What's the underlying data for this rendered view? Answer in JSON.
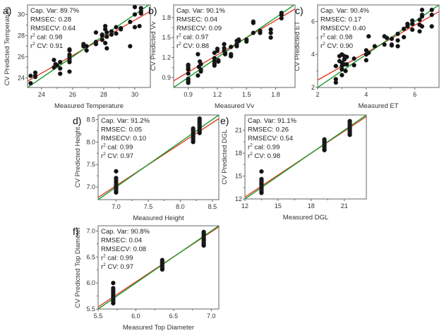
{
  "chart_data": [
    {
      "id": "a",
      "type": "scatter",
      "letter": "a)",
      "xlabel": "Measured Temperature",
      "ylabel": "CV Predicted Temperature",
      "xlim": [
        23.1,
        31.0
      ],
      "ylim": [
        23.1,
        30.9
      ],
      "xticks": [
        24,
        26,
        28,
        30
      ],
      "yticks": [
        24,
        26,
        28,
        30
      ],
      "stats": {
        "cap_var": "Cap. Var: 89.7%",
        "rmsec": "RMSEC: 0.28",
        "rmsecv": "RMSECV: 0.64",
        "r2cal": "cal: 0.98",
        "r2cv": "CV: 0.91"
      },
      "lines": {
        "target": [
          [
            23.1,
            23.1
          ],
          [
            31.0,
            31.0
          ]
        ],
        "fit": [
          [
            23.1,
            23.7
          ],
          [
            31.0,
            30.3
          ]
        ]
      },
      "points": [
        [
          23.3,
          23.5
        ],
        [
          23.3,
          24.2
        ],
        [
          23.6,
          24.1
        ],
        [
          23.6,
          24.5
        ],
        [
          23.6,
          24.2
        ],
        [
          24.8,
          25.7
        ],
        [
          24.8,
          25.0
        ],
        [
          24.9,
          25.2
        ],
        [
          24.9,
          25.3
        ],
        [
          25.0,
          25.2
        ],
        [
          25.2,
          25.5
        ],
        [
          25.2,
          24.9
        ],
        [
          25.2,
          24.4
        ],
        [
          25.8,
          26.7
        ],
        [
          25.8,
          26.6
        ],
        [
          25.8,
          26.2
        ],
        [
          25.8,
          26.0
        ],
        [
          25.8,
          25.8
        ],
        [
          25.8,
          25.6
        ],
        [
          25.8,
          25.5
        ],
        [
          25.8,
          24.6
        ],
        [
          26.7,
          27.2
        ],
        [
          26.7,
          27.0
        ],
        [
          26.9,
          27.0
        ],
        [
          26.9,
          26.6
        ],
        [
          27.5,
          28.3
        ],
        [
          27.5,
          27.4
        ],
        [
          27.5,
          27.2
        ],
        [
          27.9,
          28.1
        ],
        [
          27.9,
          28.0
        ],
        [
          27.9,
          27.6
        ],
        [
          28.1,
          28.9
        ],
        [
          28.1,
          28.6
        ],
        [
          28.1,
          27.3
        ],
        [
          28.2,
          28.3
        ],
        [
          28.2,
          27.9
        ],
        [
          28.2,
          26.8
        ],
        [
          28.5,
          28.4
        ],
        [
          28.5,
          28.1
        ],
        [
          28.8,
          28.8
        ],
        [
          28.8,
          28.2
        ],
        [
          29.1,
          28.6
        ],
        [
          29.1,
          28.7
        ],
        [
          29.7,
          29.3
        ],
        [
          29.7,
          27.0
        ],
        [
          30.0,
          30.7
        ],
        [
          30.0,
          30.0
        ],
        [
          30.0,
          28.8
        ],
        [
          30.3,
          28.9
        ],
        [
          30.4,
          30.6
        ],
        [
          30.4,
          30.3
        ],
        [
          30.4,
          30.1
        ]
      ]
    },
    {
      "id": "b",
      "type": "scatter",
      "letter": "b)",
      "xlabel": "Measured Vv",
      "ylabel": "CV Predicted Vv",
      "xlim": [
        0.75,
        2.0
      ],
      "ylim": [
        0.75,
        1.99
      ],
      "xticks": [
        0.9,
        1.2,
        1.5,
        1.8
      ],
      "yticks": [
        0.9,
        1.2,
        1.5,
        1.8
      ],
      "stats": {
        "cap_var": "Cap. Var: 90.1%",
        "rmsec": "RMSEC: 0.04",
        "rmsecv": "RMSECV: 0.09",
        "r2cal": "cal: 0.97",
        "r2cv": "CV: 0.88"
      },
      "lines": {
        "target": [
          [
            0.75,
            0.75
          ],
          [
            2.0,
            2.0
          ]
        ],
        "fit": [
          [
            0.75,
            0.85
          ],
          [
            2.0,
            1.93
          ]
        ]
      },
      "points": [
        [
          0.9,
          1.09
        ],
        [
          0.9,
          1.07
        ],
        [
          0.9,
          1.04
        ],
        [
          0.9,
          1.02
        ],
        [
          0.9,
          0.96
        ],
        [
          0.9,
          0.88
        ],
        [
          0.9,
          0.86
        ],
        [
          0.9,
          0.84
        ],
        [
          0.9,
          0.82
        ],
        [
          1.0,
          1.25
        ],
        [
          1.0,
          0.93
        ],
        [
          1.01,
          1.06
        ],
        [
          1.02,
          1.14
        ],
        [
          1.03,
          1.1
        ],
        [
          1.03,
          1.02
        ],
        [
          1.03,
          0.99
        ],
        [
          1.17,
          1.27
        ],
        [
          1.17,
          1.19
        ],
        [
          1.17,
          1.15
        ],
        [
          1.17,
          1.11
        ],
        [
          1.17,
          1.08
        ],
        [
          1.2,
          1.33
        ],
        [
          1.2,
          1.3
        ],
        [
          1.21,
          1.16
        ],
        [
          1.21,
          1.14
        ],
        [
          1.27,
          1.4
        ],
        [
          1.27,
          1.34
        ],
        [
          1.27,
          1.3
        ],
        [
          1.28,
          1.27
        ],
        [
          1.28,
          1.25
        ],
        [
          1.34,
          1.36
        ],
        [
          1.34,
          1.25
        ],
        [
          1.34,
          1.22
        ],
        [
          1.4,
          1.45
        ],
        [
          1.4,
          1.4
        ],
        [
          1.4,
          1.37
        ],
        [
          1.42,
          1.47
        ],
        [
          1.42,
          1.45
        ],
        [
          1.5,
          1.47
        ],
        [
          1.5,
          1.44
        ],
        [
          1.57,
          1.74
        ],
        [
          1.57,
          1.72
        ],
        [
          1.57,
          1.57
        ],
        [
          1.64,
          1.6
        ],
        [
          1.64,
          1.57
        ],
        [
          1.75,
          1.62
        ],
        [
          1.75,
          1.57
        ],
        [
          1.75,
          1.5
        ],
        [
          1.86,
          1.87
        ],
        [
          1.86,
          1.84
        ],
        [
          1.86,
          1.79
        ]
      ]
    },
    {
      "id": "c",
      "type": "scatter",
      "letter": "c)",
      "xlabel": "Measured ET",
      "ylabel": "CV Predicted ET",
      "xlim": [
        2,
        7
      ],
      "ylim": [
        2,
        7
      ],
      "xticks": [
        2,
        4,
        6
      ],
      "yticks": [
        2,
        4,
        6
      ],
      "stats": {
        "cap_var": "Cap. Var: 90.4%",
        "rmsec": "RMSEC: 0.17",
        "rmsecv": "RMSECV: 0.40",
        "r2cal": "cal: 0.98",
        "r2cv": "CV: 0.90"
      },
      "lines": {
        "target": [
          [
            2,
            2
          ],
          [
            7,
            7
          ]
        ],
        "fit": [
          [
            2,
            2.45
          ],
          [
            7,
            6.6
          ]
        ]
      },
      "points": [
        [
          2.75,
          3.3
        ],
        [
          2.75,
          2.5
        ],
        [
          2.75,
          2.3
        ],
        [
          2.9,
          3.9
        ],
        [
          2.9,
          3.6
        ],
        [
          3.0,
          4.0
        ],
        [
          3.0,
          3.5
        ],
        [
          3.0,
          3.3
        ],
        [
          3.0,
          3.1
        ],
        [
          3.0,
          2.75
        ],
        [
          3.1,
          3.9
        ],
        [
          3.1,
          3.7
        ],
        [
          3.1,
          3.4
        ],
        [
          3.15,
          3.0
        ],
        [
          3.2,
          3.85
        ],
        [
          3.2,
          3.4
        ],
        [
          3.5,
          3.75
        ],
        [
          3.5,
          3.35
        ],
        [
          4.0,
          4.25
        ],
        [
          4.0,
          4.0
        ],
        [
          4.0,
          3.65
        ],
        [
          4.1,
          5.1
        ],
        [
          4.1,
          4.1
        ],
        [
          4.35,
          4.5
        ],
        [
          4.75,
          5.1
        ],
        [
          4.75,
          4.6
        ],
        [
          4.85,
          5.0
        ],
        [
          5.05,
          4.6
        ],
        [
          5.05,
          4.55
        ],
        [
          5.05,
          4.95
        ],
        [
          5.3,
          5.25
        ],
        [
          5.3,
          4.85
        ],
        [
          5.3,
          4.5
        ],
        [
          5.55,
          5.55
        ],
        [
          5.55,
          5.05
        ],
        [
          5.7,
          5.85
        ],
        [
          5.7,
          5.7
        ],
        [
          5.9,
          6.05
        ],
        [
          5.9,
          5.85
        ],
        [
          5.9,
          5.5
        ],
        [
          6.2,
          6.1
        ],
        [
          6.2,
          5.8
        ],
        [
          6.2,
          5.4
        ],
        [
          6.3,
          6.7
        ],
        [
          6.3,
          6.4
        ],
        [
          6.3,
          6.3
        ],
        [
          6.3,
          5.7
        ],
        [
          6.7,
          6.7
        ],
        [
          6.7,
          6.4
        ],
        [
          6.7,
          5.7
        ]
      ]
    },
    {
      "id": "d",
      "type": "scatter",
      "letter": "d)",
      "xlabel": "Measured Height",
      "ylabel": "CV Predicted Height",
      "xlim": [
        6.72,
        8.6
      ],
      "ylim": [
        6.72,
        8.6
      ],
      "xticks": [
        7.0,
        7.5,
        8.0,
        8.5
      ],
      "yticks": [
        7.0,
        7.5,
        8.0,
        8.5
      ],
      "stats": {
        "cap_var": "Cap. Var: 91.2%",
        "rmsec": "RMSEC: 0.05",
        "rmsecv": "RMSECV: 0.10",
        "r2cal": "cal: 0.99",
        "r2cv": "CV: 0.97"
      },
      "lines": {
        "target": [
          [
            6.72,
            6.72
          ],
          [
            8.6,
            8.6
          ]
        ],
        "fit": [
          [
            6.72,
            6.77
          ],
          [
            8.6,
            8.52
          ]
        ]
      },
      "points": [
        [
          7.0,
          7.35
        ],
        [
          7.0,
          7.2
        ],
        [
          7.0,
          7.15
        ],
        [
          7.0,
          7.1
        ],
        [
          7.0,
          7.05
        ],
        [
          7.0,
          7.02
        ],
        [
          7.0,
          7.0
        ],
        [
          7.0,
          6.97
        ],
        [
          7.0,
          6.94
        ],
        [
          7.0,
          6.91
        ],
        [
          7.0,
          6.88
        ],
        [
          8.2,
          8.3
        ],
        [
          8.2,
          8.27
        ],
        [
          8.2,
          8.23
        ],
        [
          8.2,
          8.2
        ],
        [
          8.2,
          8.16
        ],
        [
          8.2,
          8.12
        ],
        [
          8.2,
          8.08
        ],
        [
          8.2,
          8.04
        ],
        [
          8.2,
          8.0
        ],
        [
          8.3,
          8.52
        ],
        [
          8.3,
          8.48
        ],
        [
          8.3,
          8.44
        ],
        [
          8.3,
          8.4
        ],
        [
          8.3,
          8.36
        ],
        [
          8.3,
          8.32
        ],
        [
          8.3,
          8.28
        ],
        [
          8.3,
          8.24
        ],
        [
          8.3,
          8.2
        ]
      ]
    },
    {
      "id": "e",
      "type": "scatter",
      "letter": "e)",
      "xlabel": "Measured DGL",
      "ylabel": "CV Predicted DGL",
      "xlim": [
        12,
        23.0
      ],
      "ylim": [
        12,
        23.0
      ],
      "xticks": [
        12,
        15,
        18,
        21
      ],
      "yticks": [
        12,
        15,
        18,
        21
      ],
      "stats": {
        "cap_var": "Cap. Var: 91.1%",
        "rmsec": "RMSEC: 0.26",
        "rmsecv": "RMSECV: 0.54",
        "r2cal": "cal: 0.99",
        "r2cv": "CV: 0.98"
      },
      "lines": {
        "target": [
          [
            12,
            12
          ],
          [
            23,
            23
          ]
        ],
        "fit": [
          [
            12,
            12.25
          ],
          [
            23,
            22.8
          ]
        ]
      },
      "points": [
        [
          13.5,
          15.6
        ],
        [
          13.5,
          14.6
        ],
        [
          13.5,
          14.4
        ],
        [
          13.5,
          14.2
        ],
        [
          13.5,
          14.0
        ],
        [
          13.5,
          13.8
        ],
        [
          13.5,
          13.6
        ],
        [
          13.5,
          13.4
        ],
        [
          13.5,
          13.2
        ],
        [
          13.5,
          13.0
        ],
        [
          13.5,
          12.8
        ],
        [
          19.2,
          19.8
        ],
        [
          19.2,
          19.6
        ],
        [
          19.2,
          19.4
        ],
        [
          19.2,
          19.2
        ],
        [
          19.2,
          19.0
        ],
        [
          19.2,
          18.8
        ],
        [
          19.2,
          18.6
        ],
        [
          19.2,
          18.4
        ],
        [
          21.5,
          22.2
        ],
        [
          21.5,
          22.0
        ],
        [
          21.5,
          21.8
        ],
        [
          21.5,
          21.6
        ],
        [
          21.5,
          21.4
        ],
        [
          21.5,
          21.2
        ],
        [
          21.5,
          21.0
        ],
        [
          21.5,
          20.8
        ],
        [
          21.5,
          20.6
        ],
        [
          21.5,
          20.4
        ]
      ]
    },
    {
      "id": "f",
      "type": "scatter",
      "letter": "f)",
      "xlabel": "Measured Top Diameter",
      "ylabel": "CV Predicted Top Diameter",
      "xlim": [
        5.5,
        7.1
      ],
      "ylim": [
        5.5,
        7.1
      ],
      "xticks": [
        5.5,
        6.0,
        6.5,
        7.0
      ],
      "yticks": [
        5.5,
        6.0,
        6.5,
        7.0
      ],
      "stats": {
        "cap_var": "Cap. Var: 90.8%",
        "rmsec": "RMSEC: 0.04",
        "rmsecv": "RMSECV: 0.08",
        "r2cal": "cal: 0.99",
        "r2cv": "CV: 0.97"
      },
      "lines": {
        "target": [
          [
            5.5,
            5.5
          ],
          [
            7.1,
            7.1
          ]
        ],
        "fit": [
          [
            5.5,
            5.54
          ],
          [
            7.1,
            7.08
          ]
        ]
      },
      "points": [
        [
          5.7,
          6.0
        ],
        [
          5.7,
          5.9
        ],
        [
          5.7,
          5.86
        ],
        [
          5.7,
          5.82
        ],
        [
          5.7,
          5.78
        ],
        [
          5.7,
          5.74
        ],
        [
          5.7,
          5.7
        ],
        [
          5.7,
          5.67
        ],
        [
          5.7,
          5.64
        ],
        [
          5.7,
          5.61
        ],
        [
          6.35,
          6.44
        ],
        [
          6.35,
          6.41
        ],
        [
          6.35,
          6.38
        ],
        [
          6.35,
          6.35
        ],
        [
          6.35,
          6.32
        ],
        [
          6.35,
          6.29
        ],
        [
          6.35,
          6.26
        ],
        [
          6.9,
          6.98
        ],
        [
          6.9,
          6.95
        ],
        [
          6.9,
          6.92
        ],
        [
          6.9,
          6.88
        ],
        [
          6.9,
          6.85
        ],
        [
          6.9,
          6.82
        ],
        [
          6.9,
          6.78
        ],
        [
          6.9,
          6.75
        ],
        [
          6.9,
          6.72
        ]
      ]
    }
  ],
  "colors": {
    "fit_line": "#e03c28",
    "target_line": "#1a9a2a",
    "points": "#111111",
    "frame": "#666666"
  },
  "r2_symbol": "r",
  "r2_superscript": "2"
}
